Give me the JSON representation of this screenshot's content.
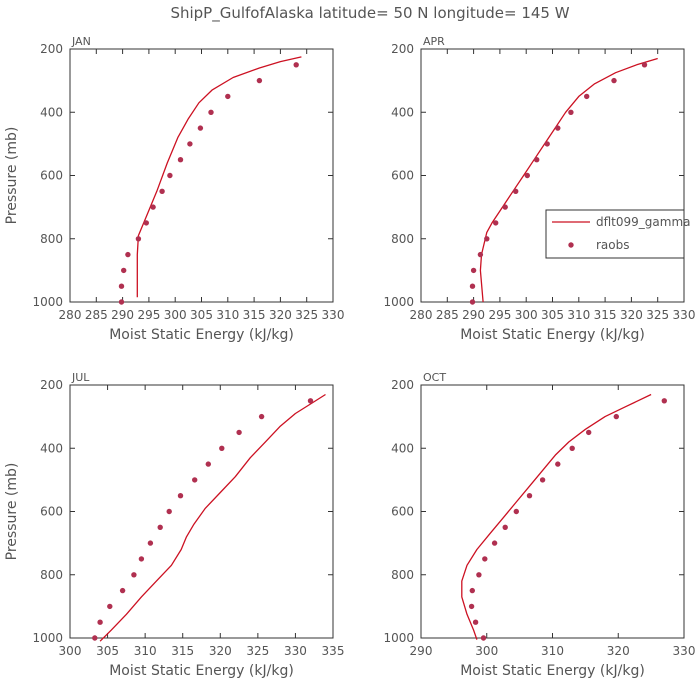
{
  "title": "ShipP_GulfofAlaska   latitude= 50 N longitude= 145 W",
  "legend": {
    "model_label": "dflt099_gamma",
    "obs_label": "raobs"
  },
  "colors": {
    "model": "#cc1122",
    "obs": "#b03050",
    "text": "#555555",
    "axis": "#333333"
  },
  "chart_data": [
    {
      "type": "line",
      "panel_label": "JAN",
      "xlabel": "Moist Static Energy (kJ/kg)",
      "ylabel": "Pressure (mb)",
      "xlim": [
        280,
        330
      ],
      "ylim": [
        1000,
        200
      ],
      "x_ticks": [
        280,
        285,
        290,
        295,
        300,
        305,
        310,
        315,
        320,
        325,
        330
      ],
      "y_ticks": [
        200,
        400,
        600,
        800,
        1000
      ],
      "series": [
        {
          "name": "dflt099_gamma",
          "kind": "line",
          "points": [
            [
              292.8,
              985
            ],
            [
              292.8,
              850
            ],
            [
              293.0,
              790
            ],
            [
              294.5,
              730
            ],
            [
              296.5,
              650
            ],
            [
              298.5,
              560
            ],
            [
              300.5,
              480
            ],
            [
              302.5,
              420
            ],
            [
              304.5,
              370
            ],
            [
              307.0,
              330
            ],
            [
              311.0,
              290
            ],
            [
              316.0,
              260
            ],
            [
              320.0,
              240
            ],
            [
              324.0,
              225
            ]
          ]
        },
        {
          "name": "raobs",
          "kind": "points",
          "points": [
            [
              289.8,
              1000
            ],
            [
              289.8,
              950
            ],
            [
              290.2,
              900
            ],
            [
              291.0,
              850
            ],
            [
              293.0,
              800
            ],
            [
              294.5,
              750
            ],
            [
              295.8,
              700
            ],
            [
              297.5,
              650
            ],
            [
              299.0,
              600
            ],
            [
              301.0,
              550
            ],
            [
              302.8,
              500
            ],
            [
              304.8,
              450
            ],
            [
              306.8,
              400
            ],
            [
              310.0,
              350
            ],
            [
              316.0,
              300
            ],
            [
              323.0,
              250
            ]
          ]
        }
      ]
    },
    {
      "type": "line",
      "panel_label": "APR",
      "xlabel": "Moist Static Energy (kJ/kg)",
      "ylabel": "",
      "xlim": [
        280,
        330
      ],
      "ylim": [
        1000,
        200
      ],
      "x_ticks": [
        280,
        285,
        290,
        295,
        300,
        305,
        310,
        315,
        320,
        325,
        330
      ],
      "y_ticks": [
        200,
        400,
        600,
        800,
        1000
      ],
      "series": [
        {
          "name": "dflt099_gamma",
          "kind": "line",
          "points": [
            [
              291.8,
              1000
            ],
            [
              291.3,
              900
            ],
            [
              291.5,
              850
            ],
            [
              292.5,
              780
            ],
            [
              293.5,
              750
            ],
            [
              295.5,
              700
            ],
            [
              297.5,
              650
            ],
            [
              299.5,
              600
            ],
            [
              301.5,
              550
            ],
            [
              303.5,
              500
            ],
            [
              305.5,
              450
            ],
            [
              307.5,
              400
            ],
            [
              310.0,
              350
            ],
            [
              313.0,
              310
            ],
            [
              317.0,
              275
            ],
            [
              321.0,
              250
            ],
            [
              325.0,
              230
            ]
          ]
        },
        {
          "name": "raobs",
          "kind": "points",
          "points": [
            [
              289.8,
              1000
            ],
            [
              289.8,
              950
            ],
            [
              290.0,
              900
            ],
            [
              291.3,
              850
            ],
            [
              292.5,
              800
            ],
            [
              294.2,
              750
            ],
            [
              296.0,
              700
            ],
            [
              298.0,
              650
            ],
            [
              300.2,
              600
            ],
            [
              302.0,
              550
            ],
            [
              304.0,
              500
            ],
            [
              306.0,
              450
            ],
            [
              308.5,
              400
            ],
            [
              311.5,
              350
            ],
            [
              316.7,
              300
            ],
            [
              322.5,
              250
            ]
          ]
        }
      ]
    },
    {
      "type": "line",
      "panel_label": "JUL",
      "xlabel": "Moist Static Energy (kJ/kg)",
      "ylabel": "Pressure (mb)",
      "xlim": [
        300,
        335
      ],
      "ylim": [
        1000,
        200
      ],
      "x_ticks": [
        300,
        305,
        310,
        315,
        320,
        325,
        330,
        335
      ],
      "y_ticks": [
        200,
        400,
        600,
        800,
        1000
      ],
      "series": [
        {
          "name": "dflt099_gamma",
          "kind": "line",
          "points": [
            [
              304.0,
              1010
            ],
            [
              305.5,
              975
            ],
            [
              307.5,
              925
            ],
            [
              309.5,
              870
            ],
            [
              311.5,
              820
            ],
            [
              313.5,
              770
            ],
            [
              314.8,
              720
            ],
            [
              315.5,
              680
            ],
            [
              316.5,
              640
            ],
            [
              318.0,
              590
            ],
            [
              320.0,
              540
            ],
            [
              322.0,
              490
            ],
            [
              324.0,
              430
            ],
            [
              326.0,
              380
            ],
            [
              328.0,
              330
            ],
            [
              330.0,
              290
            ],
            [
              332.0,
              260
            ],
            [
              334.0,
              230
            ]
          ]
        },
        {
          "name": "raobs",
          "kind": "points",
          "points": [
            [
              303.3,
              1000
            ],
            [
              304.0,
              950
            ],
            [
              305.3,
              900
            ],
            [
              307.0,
              850
            ],
            [
              308.5,
              800
            ],
            [
              309.5,
              750
            ],
            [
              310.7,
              700
            ],
            [
              312.0,
              650
            ],
            [
              313.2,
              600
            ],
            [
              314.7,
              550
            ],
            [
              316.6,
              500
            ],
            [
              318.4,
              450
            ],
            [
              320.2,
              400
            ],
            [
              322.5,
              350
            ],
            [
              325.5,
              300
            ],
            [
              332.0,
              250
            ]
          ]
        }
      ]
    },
    {
      "type": "line",
      "panel_label": "OCT",
      "xlabel": "Moist Static Energy (kJ/kg)",
      "ylabel": "",
      "xlim": [
        290,
        330
      ],
      "ylim": [
        1000,
        200
      ],
      "x_ticks": [
        290,
        300,
        310,
        320,
        330
      ],
      "y_ticks": [
        200,
        400,
        600,
        800,
        1000
      ],
      "series": [
        {
          "name": "dflt099_gamma",
          "kind": "line",
          "points": [
            [
              298.5,
              1005
            ],
            [
              298.0,
              975
            ],
            [
              297.0,
              925
            ],
            [
              296.2,
              870
            ],
            [
              296.2,
              820
            ],
            [
              297.0,
              770
            ],
            [
              298.5,
              720
            ],
            [
              300.5,
              670
            ],
            [
              302.5,
              620
            ],
            [
              304.5,
              570
            ],
            [
              306.5,
              520
            ],
            [
              308.5,
              470
            ],
            [
              310.5,
              420
            ],
            [
              312.5,
              380
            ],
            [
              315.0,
              340
            ],
            [
              318.0,
              300
            ],
            [
              321.0,
              270
            ],
            [
              325.0,
              230
            ]
          ]
        },
        {
          "name": "raobs",
          "kind": "points",
          "points": [
            [
              299.5,
              1000
            ],
            [
              298.3,
              950
            ],
            [
              297.7,
              900
            ],
            [
              297.8,
              850
            ],
            [
              298.8,
              800
            ],
            [
              299.7,
              750
            ],
            [
              301.2,
              700
            ],
            [
              302.8,
              650
            ],
            [
              304.5,
              600
            ],
            [
              306.5,
              550
            ],
            [
              308.5,
              500
            ],
            [
              310.8,
              450
            ],
            [
              313.0,
              400
            ],
            [
              315.5,
              350
            ],
            [
              319.7,
              300
            ],
            [
              327.0,
              250
            ]
          ]
        }
      ]
    }
  ]
}
